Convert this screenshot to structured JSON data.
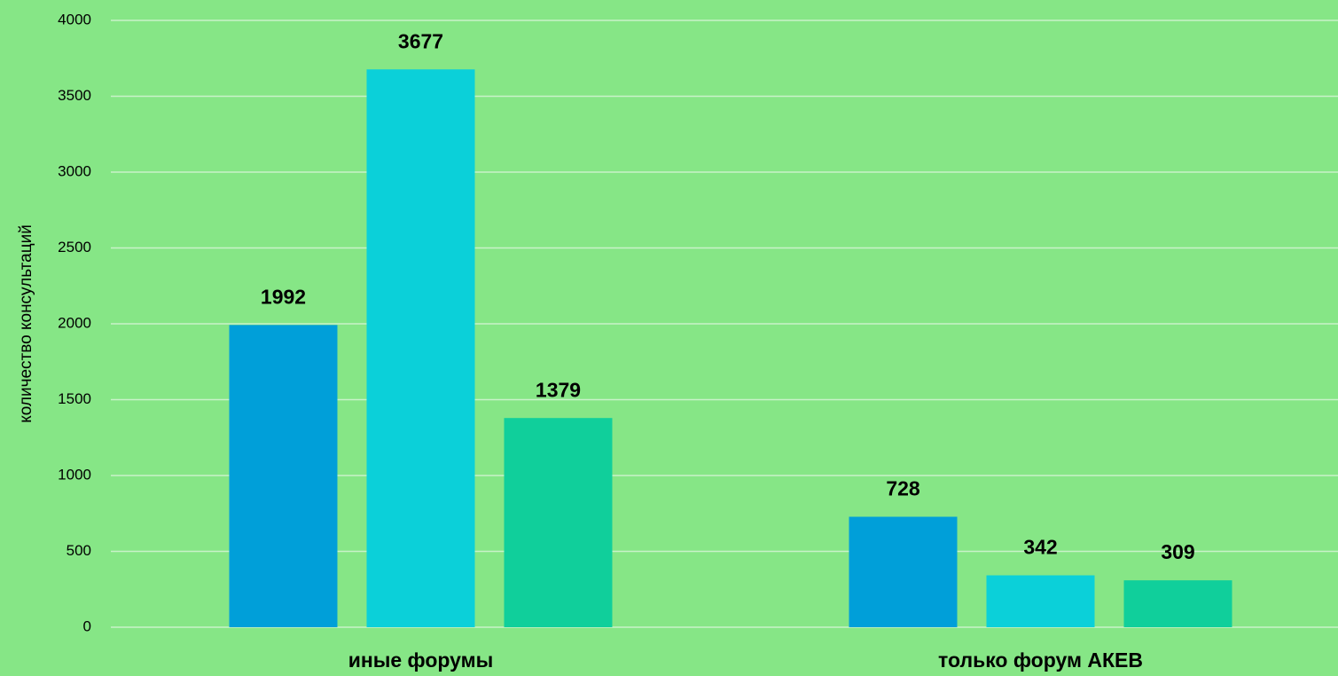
{
  "chart_data": {
    "type": "bar",
    "y_label": "количество консультаций",
    "categories": [
      "иные форумы",
      "только форум АКЕВ"
    ],
    "series": [
      {
        "color": "#009fd9",
        "values": [
          1992,
          728
        ]
      },
      {
        "color": "#0bd0d9",
        "values": [
          3677,
          342
        ]
      },
      {
        "color": "#10cf9b",
        "values": [
          1379,
          309
        ]
      }
    ],
    "ylim": [
      0,
      4000
    ],
    "yticks": [
      0,
      500,
      1000,
      1500,
      2000,
      2500,
      3000,
      3500,
      4000
    ],
    "grid": true
  }
}
